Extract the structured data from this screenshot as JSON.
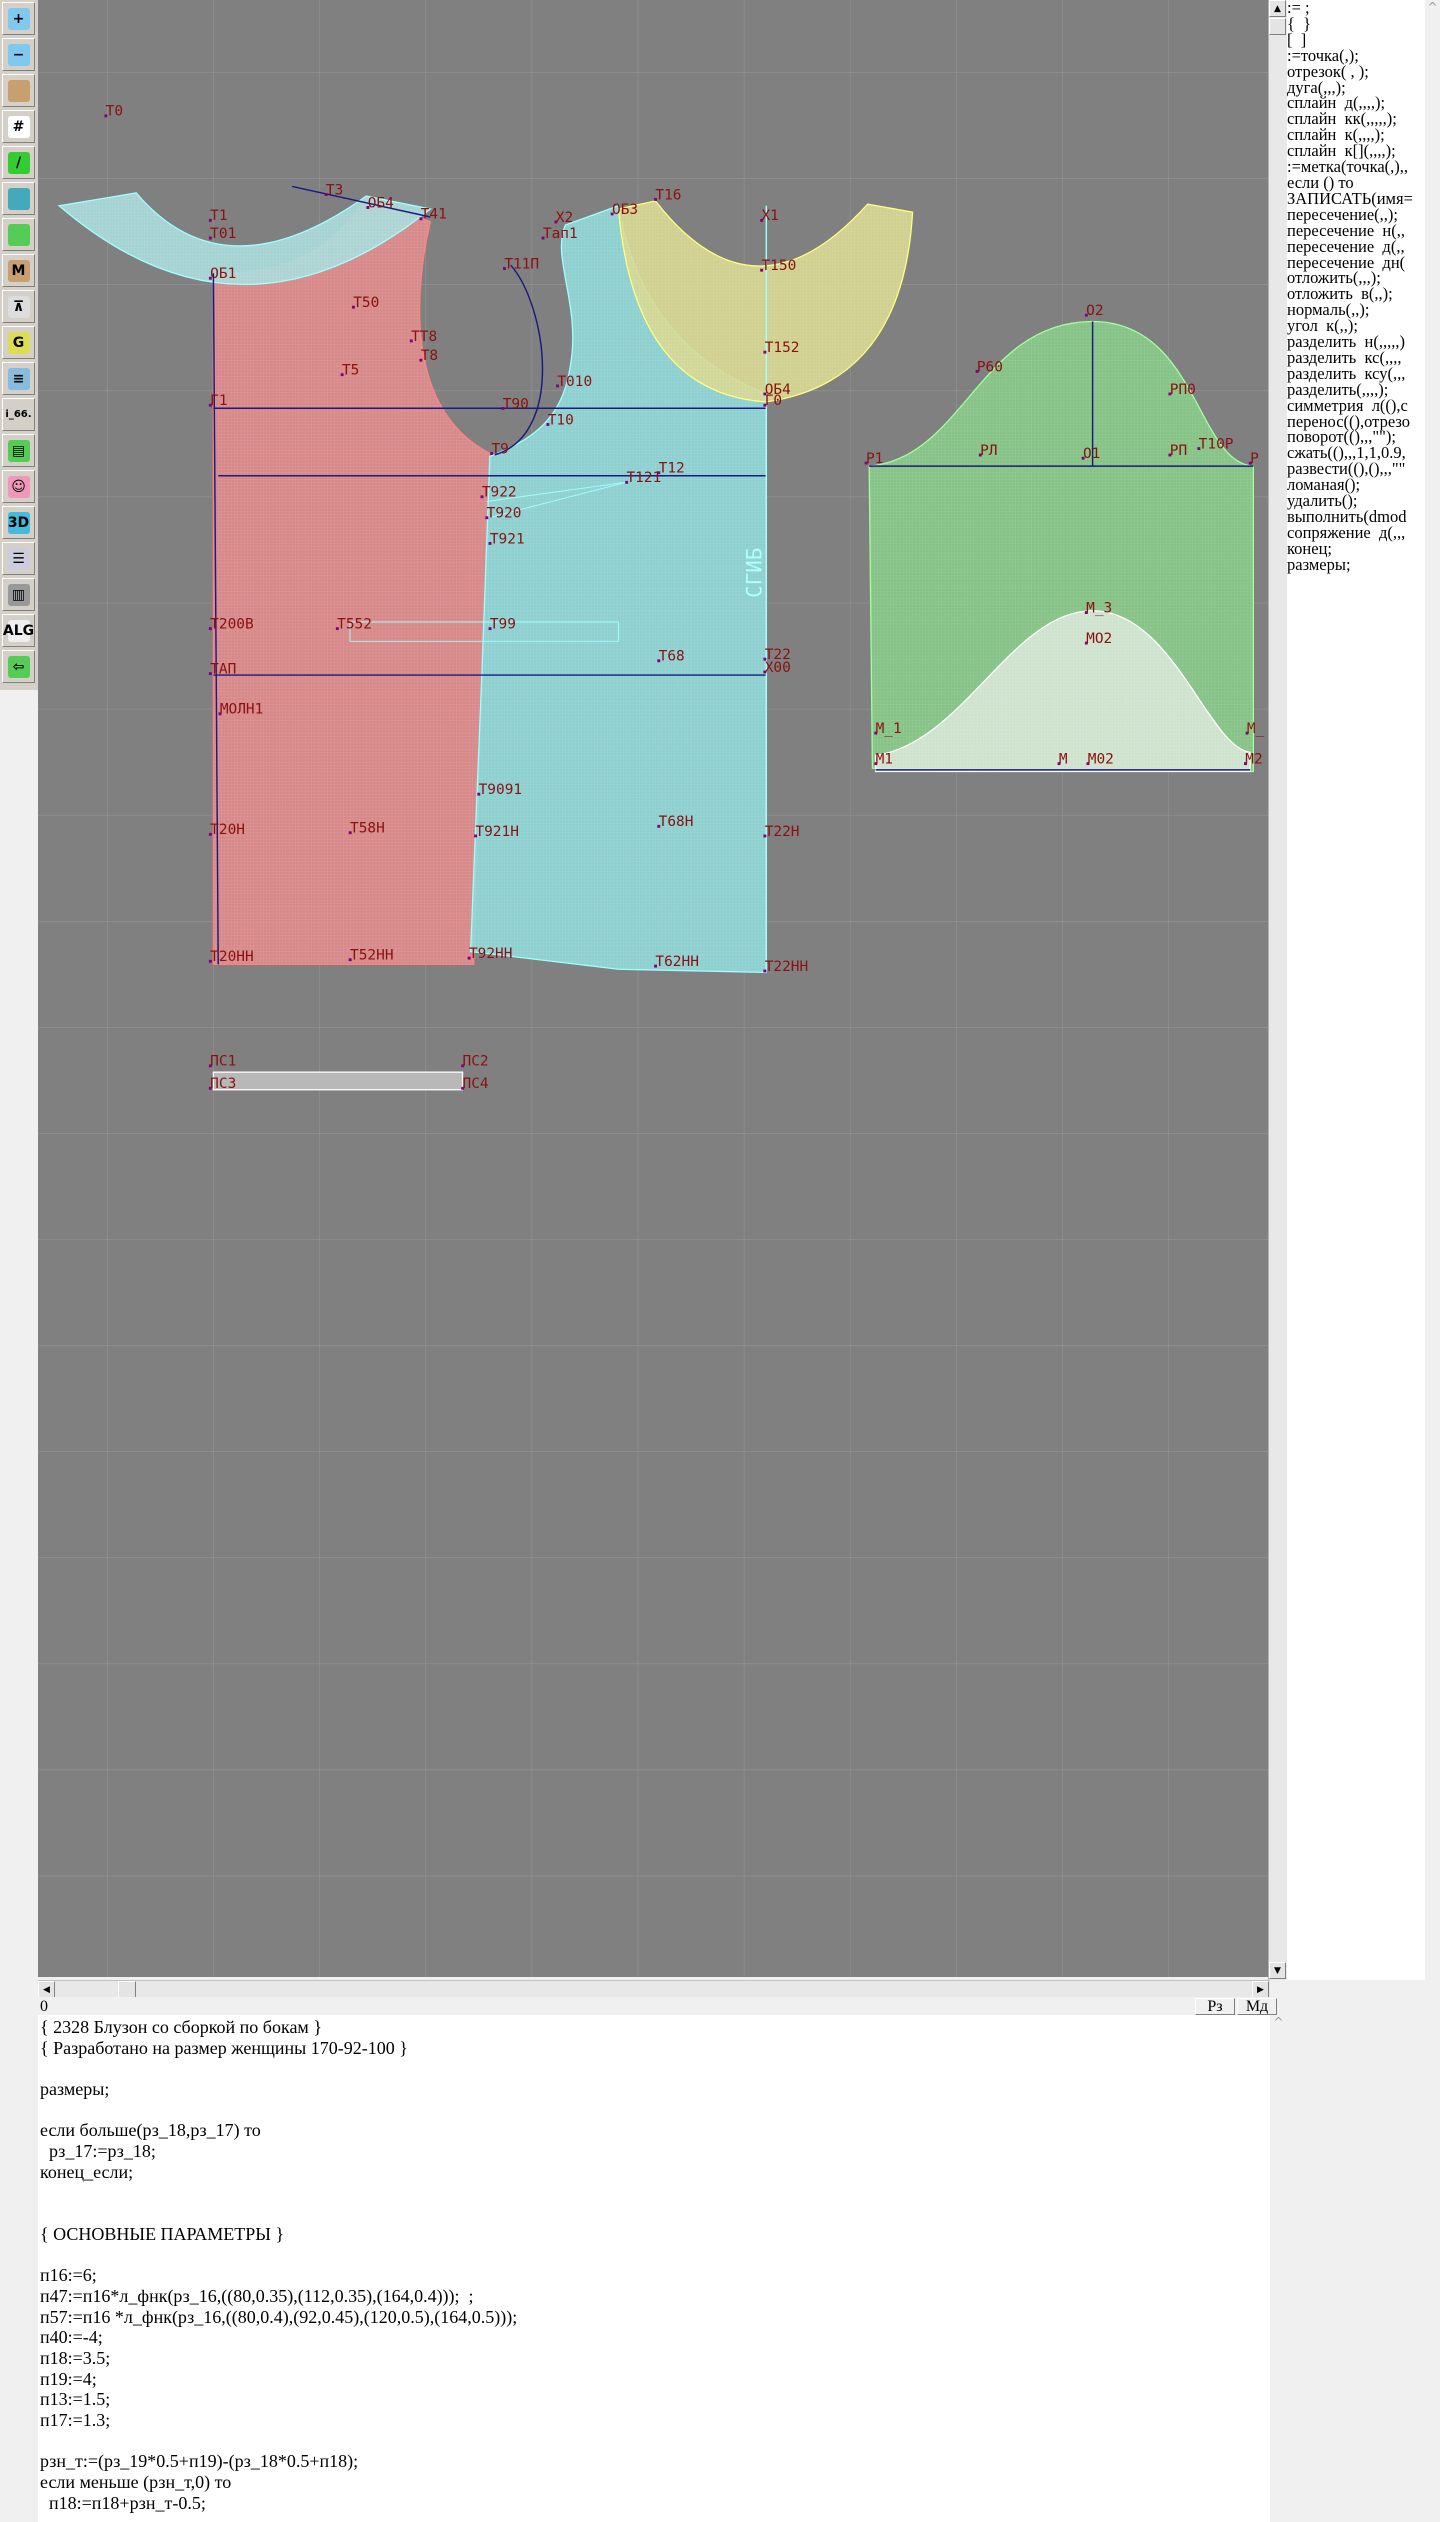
{
  "toolbar": {
    "items": [
      {
        "icon": "zoom-in-icon",
        "label": ""
      },
      {
        "icon": "zoom-out-icon",
        "label": ""
      },
      {
        "icon": "pieces-icon",
        "label": ""
      },
      {
        "icon": "grid-icon",
        "label": ""
      },
      {
        "icon": "segment-icon",
        "label": ""
      },
      {
        "icon": "layer-icon",
        "label": ""
      },
      {
        "icon": "piece-outline-icon",
        "label": ""
      },
      {
        "icon": "model-m-icon",
        "label": "M"
      },
      {
        "icon": "compass-icon",
        "label": ""
      },
      {
        "icon": "grading-g-icon",
        "label": "G"
      },
      {
        "icon": "ruler-icon",
        "label": ""
      },
      {
        "icon": "measurement-text-icon",
        "label": "i_66."
      },
      {
        "icon": "table-icon",
        "label": ""
      },
      {
        "icon": "avatar-photo-icon",
        "label": ""
      },
      {
        "icon": "3d-icon",
        "label": "3D"
      },
      {
        "icon": "list-document-icon",
        "label": ""
      },
      {
        "icon": "library-books-icon",
        "label": ""
      },
      {
        "icon": "algorithm-document-icon",
        "label": "ALG"
      },
      {
        "icon": "exit-arrow-icon",
        "label": ""
      }
    ]
  },
  "canvas": {
    "background": "#808080",
    "colors": {
      "back_piece": "#e08a8a",
      "front_piece": "#8fd8d8",
      "collar_yellow": "#d8d890",
      "sleeve_green": "#86c686",
      "sleeve_inner": "#d6e6d6",
      "construction_line": "#1a1a80",
      "label": "#8b1010"
    },
    "fold_text": "СГИБ",
    "labels": [
      "Т0",
      "Т3",
      "ОБ4",
      "Т41",
      "Т1",
      "Т01",
      "ОБ1",
      "Т50",
      "ТТ8",
      "Т8",
      "Т5",
      "Г1",
      "Т90",
      "Т10",
      "Т9",
      "Т11П",
      "Х2",
      "Тап1",
      "ОБ3",
      "Т16",
      "Х1",
      "Т150",
      "Т152",
      "ОБ4",
      "Г0",
      "Т010",
      "Т12",
      "Т121",
      "Т922",
      "Т920",
      "Т921",
      "Т200В",
      "Т552",
      "Т99",
      "Т68",
      "Т22",
      "Х00",
      "ТАП",
      "МОЛН1",
      "Т9091",
      "Т20Н",
      "Т58Н",
      "Т921Н",
      "Т68Н",
      "Т22Н",
      "Т20НН",
      "Т52НН",
      "Т92НН",
      "Т62НН",
      "Т22НН",
      "ПС1",
      "ПС2",
      "ПС3",
      "ПС4",
      "О2",
      "Р60",
      "РП0",
      "Р1",
      "РЛ",
      "О1",
      "РП",
      "Т10Р",
      "Р",
      "М_3",
      "МО2",
      "М_1",
      "М_",
      "М1",
      "М",
      "М02",
      "М2"
    ]
  },
  "command_panel": {
    "items": [
      ":= ;",
      "{  }",
      "[  ]",
      ":=точка(,);",
      "отрезок( , );",
      "дуга(,,,);",
      "сплайн  д(,,,,);",
      "сплайн  кк(,,,,,);",
      "сплайн  к(,,,,);",
      "сплайн  к[](,,,,);",
      ":=метка(точка(,),,",
      "если () то",
      "ЗАПИСАТЬ(имя=",
      "пересечение(,,);",
      "пересечение  н(,,",
      "пересечение  д(,,",
      "пересечение  дн(",
      "отложить(,,,);",
      "отложить  в(,,);",
      "нормаль(,,);",
      "угол  к(,,);",
      "разделить  н(,,,,,)",
      "разделить  кс(,,,,",
      "разделить  ксу(,,,",
      "разделить(,,,,);",
      "симметрия  л((),с",
      "перенос((),отрезо",
      "поворот((),,,\"\");",
      "сжать((),,,1,1,0.9,",
      "развести((),(),,,\"\"",
      "ломаная();",
      "удалить();",
      "выполнить(dmod",
      "сопряжение  д(,,,",
      "конец;",
      "размеры;"
    ]
  },
  "status": {
    "value": "0",
    "buttons": [
      "Рз",
      "Мд"
    ]
  },
  "code": {
    "lines": [
      "{ 2328 Блузон со сборкой по бокам }",
      "{ Разработано на размер женщины 170-92-100 }",
      "",
      "размеры;",
      "",
      "если больше(рз_18,рз_17) то",
      "  рз_17:=рз_18;",
      "конец_если;",
      "",
      "",
      "{ ОСНОВНЫЕ ПАРАМЕТРЫ }",
      "",
      "п16:=6;",
      "п47:=п16*л_фнк(рз_16,((80,0.35),(112,0.35),(164,0.4)));  ;",
      "п57:=п16 *л_фнк(рз_16,((80,0.4),(92,0.45),(120,0.5),(164,0.5)));",
      "п40:=-4;",
      "п18:=3.5;",
      "п19:=4;",
      "п13:=1.5;",
      "п17:=1.3;",
      "",
      "рзн_т:=(рз_19*0.5+п19)-(рз_18*0.5+п18);",
      "если меньше (рзн_т,0) то",
      "  п18:=п18+рзн_т-0.5;"
    ]
  }
}
